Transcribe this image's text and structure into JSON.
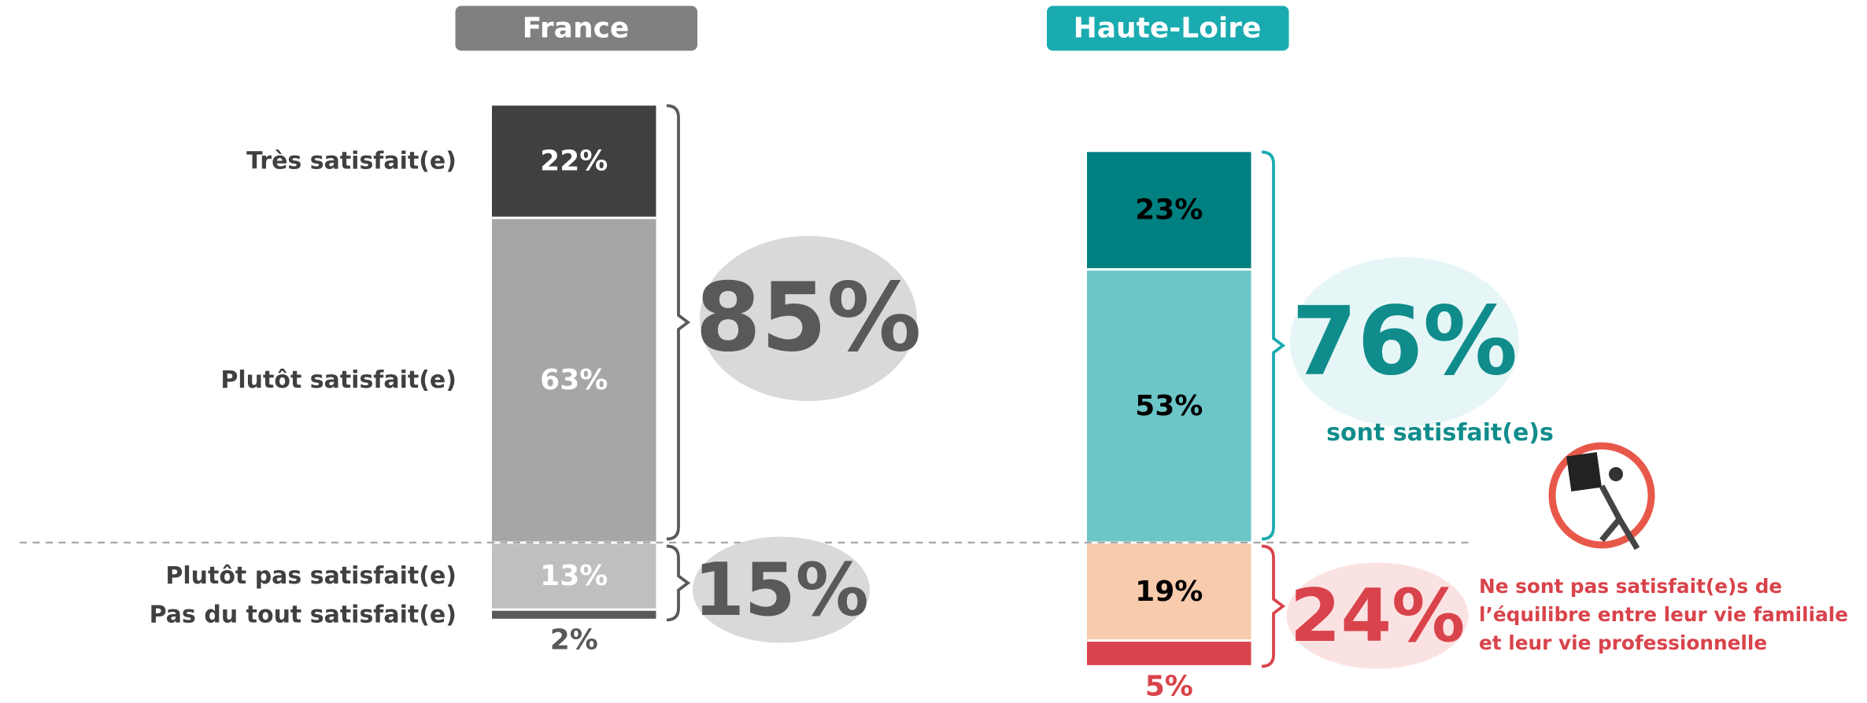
{
  "chart_data": [
    {
      "type": "stacked-bar",
      "title": "France",
      "segments": [
        {
          "label": "Très satisfait(e)",
          "value": 22,
          "value_label": "22%",
          "color": "#404040",
          "label_color": "#ffffff",
          "side": "up"
        },
        {
          "label": "Plutôt satisfait(e)",
          "value": 63,
          "value_label": "63%",
          "color": "#a6a6a6",
          "label_color": "#ffffff",
          "side": "up"
        },
        {
          "label": "Plutôt pas satisfait(e)",
          "value": 13,
          "value_label": "13%",
          "color": "#bfbfbf",
          "label_color": "#ffffff",
          "side": "down"
        },
        {
          "label": "Pas du tout satisfait(e)",
          "value": 2,
          "value_label": "2%",
          "color": "#595959",
          "label_color": "#595959",
          "side": "down"
        }
      ],
      "total_up": {
        "value": 85,
        "label": "85%"
      },
      "total_down": {
        "value": 15,
        "label": "15%"
      }
    },
    {
      "type": "stacked-bar",
      "title": "Haute-Loire",
      "segments": [
        {
          "value": 23,
          "value_label": "23%",
          "color": "#008080",
          "label_color": "#000000",
          "side": "up"
        },
        {
          "value": 53,
          "value_label": "53%",
          "color": "#6cc6c8",
          "label_color": "#000000",
          "side": "up"
        },
        {
          "value": 19,
          "value_label": "19%",
          "color": "#f8cbad",
          "label_color": "#000000",
          "side": "down"
        },
        {
          "value": 5,
          "value_label": "5%",
          "color": "#d9434b",
          "label_color": "#d9434b",
          "side": "down"
        }
      ],
      "total_up": {
        "value": 76,
        "label": "76%"
      },
      "total_down": {
        "value": 24,
        "label": "24%"
      },
      "note_up": "sont satisfait(e)s",
      "note_down": [
        "Ne sont pas satisfait(e)s de",
        "l’équilibre entre leur vie familiale",
        "et leur vie professionnelle"
      ]
    }
  ]
}
